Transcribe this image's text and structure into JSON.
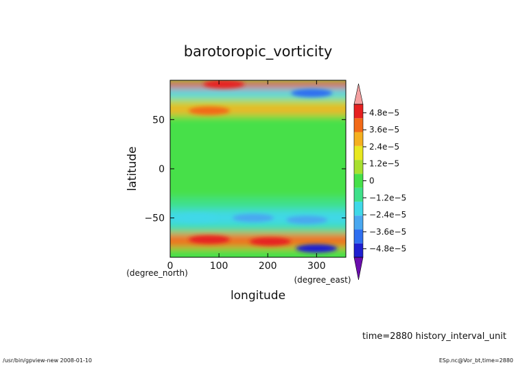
{
  "chart_data": {
    "type": "heatmap",
    "title": "barotoropic_vorticity",
    "xlabel": "longitude",
    "ylabel": "latitude",
    "x_units_label": "(degree_east)",
    "y_units_label": "(degree_north)",
    "xlim": [
      0,
      360
    ],
    "ylim": [
      -90,
      90
    ],
    "x_ticks": [
      0,
      100,
      200,
      300
    ],
    "x_tick_labels": [
      "0",
      "100",
      "200",
      "300"
    ],
    "y_ticks": [
      -50,
      0,
      50
    ],
    "y_tick_labels": [
      "−50",
      "0",
      "50"
    ],
    "colorbar": {
      "min": -5.4e-05,
      "max": 5.4e-05,
      "ticks": [
        4.8e-05,
        3.6e-05,
        2.4e-05,
        1.2e-05,
        0,
        -1.2e-05,
        -2.4e-05,
        -3.6e-05,
        -4.8e-05
      ],
      "tick_labels": [
        "4.8e−5",
        "3.6e−5",
        "2.4e−5",
        "1.2e−5",
        "0",
        "−1.2e−5",
        "−2.4e−5",
        "−3.6e−5",
        "−4.8e−5"
      ],
      "colors": [
        "#6a0dad",
        "#1f1fd0",
        "#2f6ff0",
        "#4aa8f0",
        "#40d8e8",
        "#3fe08a",
        "#46e04a",
        "#a8e030",
        "#e8e820",
        "#f5b020",
        "#f26a18",
        "#e62020",
        "#f4a0a0"
      ]
    },
    "bands": [
      {
        "lat_min": 82,
        "lat_max": 90,
        "value": 5e-05
      },
      {
        "lat_min": 72,
        "lat_max": 82,
        "value": -1.5e-05
      },
      {
        "lat_min": 65,
        "lat_max": 72,
        "value": 5e-06
      },
      {
        "lat_min": 55,
        "lat_max": 65,
        "value": 2.5e-05
      },
      {
        "lat_min": 40,
        "lat_max": 55,
        "value": 4e-06
      },
      {
        "lat_min": 20,
        "lat_max": 40,
        "value": 0.0
      },
      {
        "lat_min": -10,
        "lat_max": 20,
        "value": 1e-06
      },
      {
        "lat_min": -30,
        "lat_max": -10,
        "value": 0.0
      },
      {
        "lat_min": -42,
        "lat_max": -30,
        "value": -6e-06
      },
      {
        "lat_min": -58,
        "lat_max": -42,
        "value": -1.6e-05
      },
      {
        "lat_min": -66,
        "lat_max": -58,
        "value": -6e-06
      },
      {
        "lat_min": -80,
        "lat_max": -66,
        "value": 3.5e-05
      },
      {
        "lat_min": -90,
        "lat_max": -80,
        "value": -4e-06
      }
    ],
    "features": [
      {
        "lon": 110,
        "lat": 86,
        "value": 5.2e-05
      },
      {
        "lon": 290,
        "lat": 77,
        "value": -3.6e-05
      },
      {
        "lon": 80,
        "lat": 59,
        "value": 3.8e-05
      },
      {
        "lon": 170,
        "lat": -50,
        "value": -3.2e-05
      },
      {
        "lon": 55,
        "lat": -50,
        "value": -2.2e-05
      },
      {
        "lon": 280,
        "lat": -52,
        "value": -2.6e-05
      },
      {
        "lon": 80,
        "lat": -72,
        "value": 4.6e-05
      },
      {
        "lon": 205,
        "lat": -74,
        "value": 4.5e-05
      },
      {
        "lon": 300,
        "lat": -81,
        "value": -5e-05
      }
    ]
  },
  "footer": {
    "time_label": "time=2880  history_interval_unit",
    "left_note": "/usr/bin/gpview-new  2008-01-10",
    "right_note": "ESp.nc@Vor_bt,time=2880"
  }
}
